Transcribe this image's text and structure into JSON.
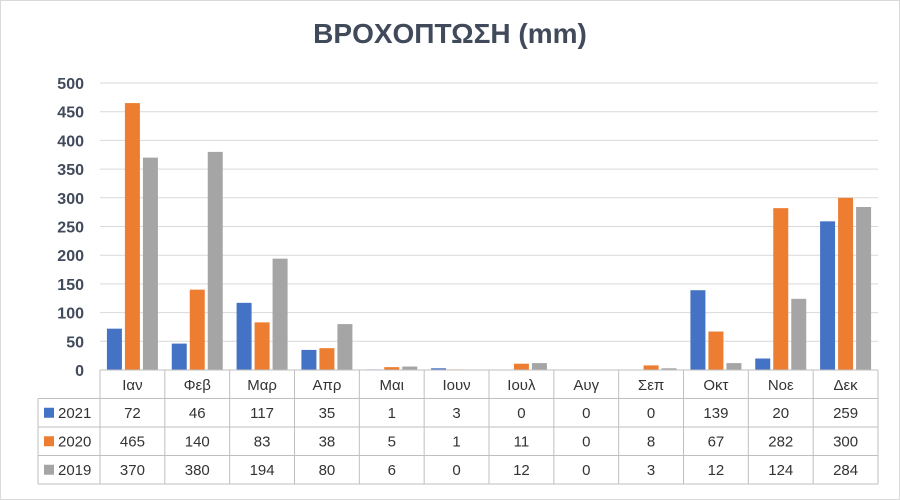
{
  "chart_data": {
    "type": "bar",
    "title": "ΒΡΟΧΟΠΤΩΣΗ (mm)",
    "categories": [
      "Ιαν",
      "Φεβ",
      "Μαρ",
      "Απρ",
      "Μαι",
      "Ιουν",
      "Ιουλ",
      "Αυγ",
      "Σεπ",
      "Οκτ",
      "Νοε",
      "Δεκ"
    ],
    "series": [
      {
        "name": "2021",
        "color": "#4472c4",
        "values": [
          72,
          46,
          117,
          35,
          1,
          3,
          0,
          0,
          0,
          139,
          20,
          259
        ]
      },
      {
        "name": "2020",
        "color": "#ed7d31",
        "values": [
          465,
          140,
          83,
          38,
          5,
          1,
          11,
          0,
          8,
          67,
          282,
          300
        ]
      },
      {
        "name": "2019",
        "color": "#a5a5a5",
        "values": [
          370,
          380,
          194,
          80,
          6,
          0,
          12,
          0,
          3,
          12,
          124,
          284
        ]
      }
    ],
    "ylim": [
      0,
      500
    ],
    "yticks": [
      0,
      50,
      100,
      150,
      200,
      250,
      300,
      350,
      400,
      450,
      500
    ],
    "grid": true,
    "legend": "data-table"
  }
}
